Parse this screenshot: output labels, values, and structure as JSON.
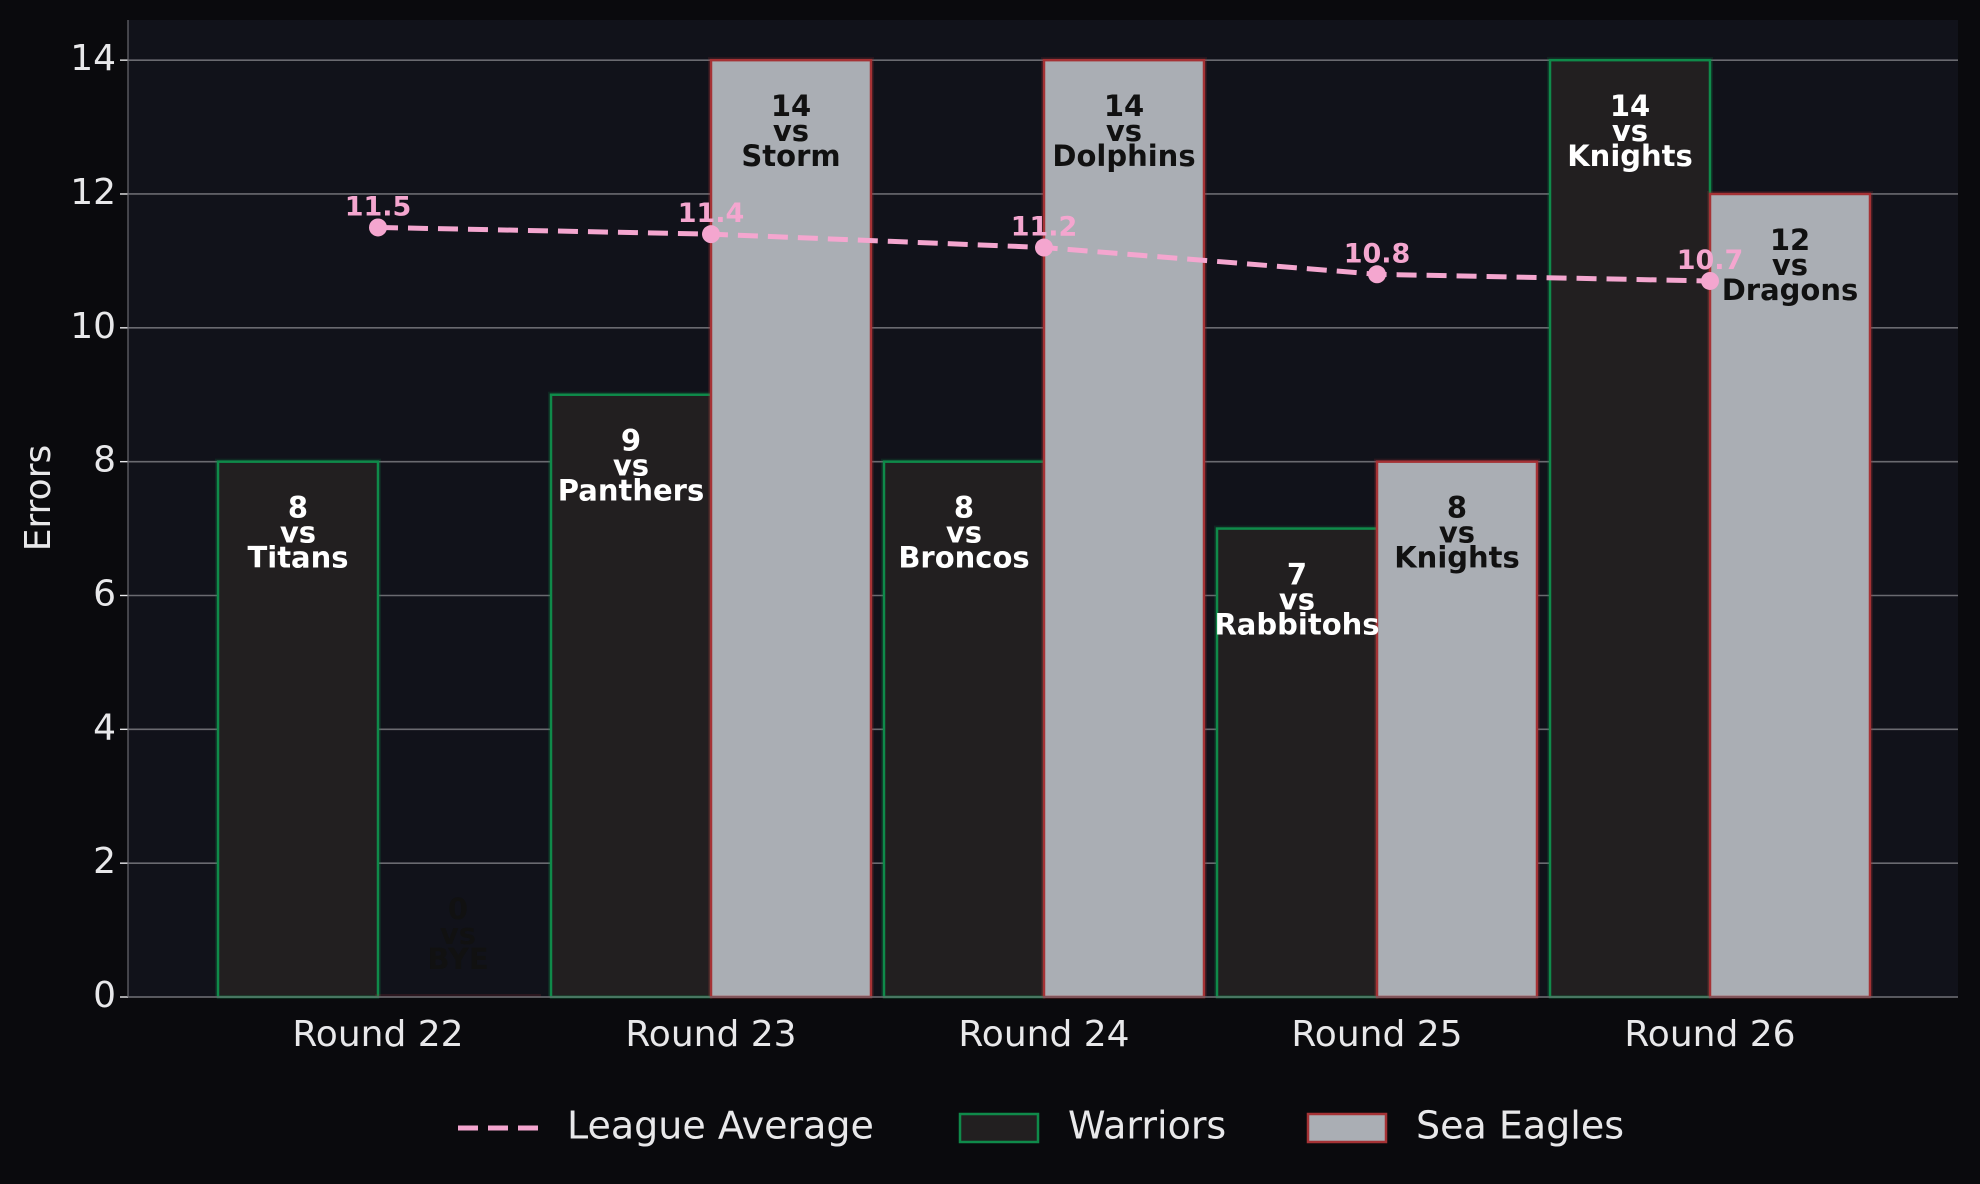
{
  "chart_data": {
    "type": "bar",
    "title": "",
    "xlabel": "",
    "ylabel": "Errors",
    "ylim": [
      0,
      14.6
    ],
    "yticks": [
      "0",
      "2",
      "4",
      "6",
      "8",
      "10",
      "12",
      "14"
    ],
    "categories": [
      "Round 22",
      "Round 23",
      "Round 24",
      "Round 25",
      "Round 26"
    ],
    "grid": true,
    "legend_position": "bottom-center",
    "series": [
      {
        "name": "Warriors",
        "kind": "bar",
        "fill": "#221f20",
        "stroke": "#0f8a4a",
        "label_color": "#ffffff",
        "values": [
          8,
          9,
          8,
          7,
          14
        ],
        "opponents": [
          "Titans",
          "Panthers",
          "Broncos",
          "Rabbitohs",
          "Knights"
        ]
      },
      {
        "name": "Sea Eagles",
        "kind": "bar",
        "fill": "#aaaeb4",
        "stroke": "#a53235",
        "label_color": "#111111",
        "values": [
          0,
          14,
          14,
          8,
          12
        ],
        "opponents": [
          "BYE",
          "Storm",
          "Dolphins",
          "Knights",
          "Dragons"
        ]
      },
      {
        "name": "League Average",
        "kind": "line",
        "color": "#f4a6cf",
        "values": [
          11.5,
          11.4,
          11.2,
          10.8,
          10.7
        ],
        "value_labels": [
          "11.5",
          "11.4",
          "11.2",
          "10.8",
          "10.7"
        ]
      }
    ],
    "vs_text": "vs"
  },
  "colors": {
    "page_background": "#0a0a0d",
    "plot_background": "#11121a",
    "grid": "#6a6a70",
    "text": "#e8e8ea"
  }
}
